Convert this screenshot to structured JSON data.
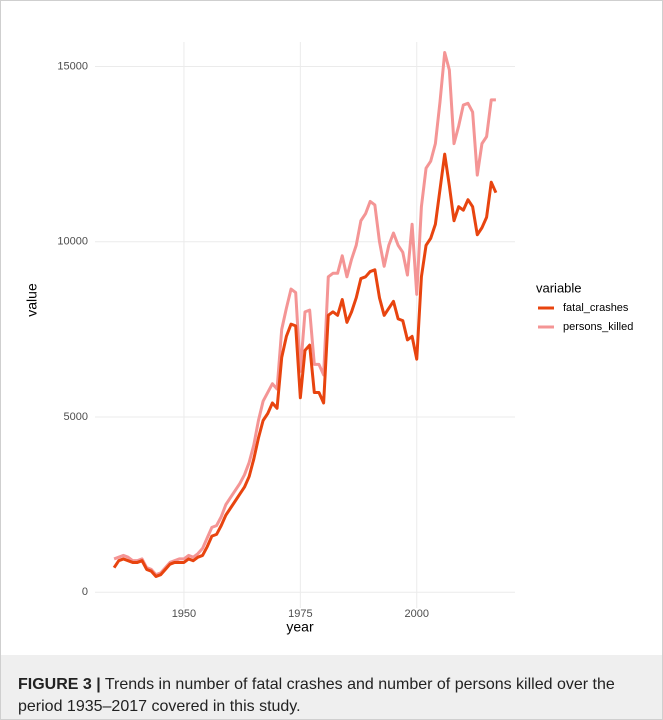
{
  "chart_data": {
    "type": "line",
    "x_label": "year",
    "y_label": "value",
    "legend_title": "variable",
    "legend": "right",
    "grid": true,
    "x": [
      1935,
      1936,
      1937,
      1938,
      1939,
      1940,
      1941,
      1942,
      1943,
      1944,
      1945,
      1946,
      1947,
      1948,
      1949,
      1950,
      1951,
      1952,
      1953,
      1954,
      1955,
      1956,
      1957,
      1958,
      1959,
      1960,
      1961,
      1962,
      1963,
      1964,
      1965,
      1966,
      1967,
      1968,
      1969,
      1970,
      1971,
      1972,
      1973,
      1974,
      1975,
      1976,
      1977,
      1978,
      1979,
      1980,
      1981,
      1982,
      1983,
      1984,
      1985,
      1986,
      1987,
      1988,
      1989,
      1990,
      1991,
      1992,
      1993,
      1994,
      1995,
      1996,
      1997,
      1998,
      1999,
      2000,
      2001,
      2002,
      2003,
      2004,
      2005,
      2006,
      2007,
      2008,
      2009,
      2010,
      2011,
      2012,
      2013,
      2014,
      2015,
      2016,
      2017
    ],
    "xlim": [
      1930.9,
      2021.1
    ],
    "xticks": [
      1950,
      1975,
      2000
    ],
    "ylim": [
      -450,
      15700
    ],
    "yticks": [
      0,
      5000,
      10000,
      15000
    ],
    "series": [
      {
        "name": "fatal_crashes",
        "color": "#e8440f",
        "values": [
          700,
          900,
          950,
          900,
          850,
          850,
          900,
          650,
          600,
          450,
          500,
          650,
          800,
          850,
          850,
          850,
          950,
          900,
          1000,
          1050,
          1300,
          1600,
          1650,
          1900,
          2200,
          2400,
          2600,
          2800,
          3000,
          3300,
          3800,
          4400,
          4900,
          5100,
          5400,
          5250,
          6700,
          7300,
          7650,
          7600,
          5550,
          6900,
          7050,
          5700,
          5700,
          5400,
          7900,
          8000,
          7900,
          8350,
          7700,
          8000,
          8400,
          8950,
          9000,
          9150,
          9200,
          8400,
          7900,
          8100,
          8300,
          7800,
          7750,
          7200,
          7300,
          6650,
          9000,
          9900,
          10100,
          10500,
          11500,
          12500,
          11600,
          10600,
          11000,
          10900,
          11200,
          11000,
          10200,
          10400,
          10700,
          11700,
          11400
        ]
      },
      {
        "name": "persons_killed",
        "color": "#f49595",
        "values": [
          950,
          1000,
          1050,
          1000,
          900,
          900,
          950,
          700,
          650,
          500,
          550,
          700,
          850,
          900,
          950,
          950,
          1050,
          1000,
          1100,
          1250,
          1550,
          1850,
          1900,
          2150,
          2500,
          2700,
          2900,
          3100,
          3350,
          3700,
          4200,
          4900,
          5450,
          5700,
          5950,
          5800,
          7500,
          8100,
          8650,
          8550,
          6300,
          8000,
          8050,
          6500,
          6500,
          6200,
          9000,
          9100,
          9100,
          9600,
          9000,
          9500,
          9900,
          10600,
          10800,
          11150,
          11050,
          10000,
          9300,
          9900,
          10250,
          9900,
          9700,
          9050,
          10500,
          8500,
          11000,
          12100,
          12300,
          12800,
          14000,
          15400,
          14900,
          12800,
          13300,
          13900,
          13950,
          13700,
          11900,
          12800,
          13000,
          14050,
          14050
        ]
      }
    ]
  },
  "figure": {
    "label": "FIGURE 3 |",
    "caption": "Trends in number of fatal crashes and number of persons killed over the period 1935–2017 covered in this study."
  }
}
